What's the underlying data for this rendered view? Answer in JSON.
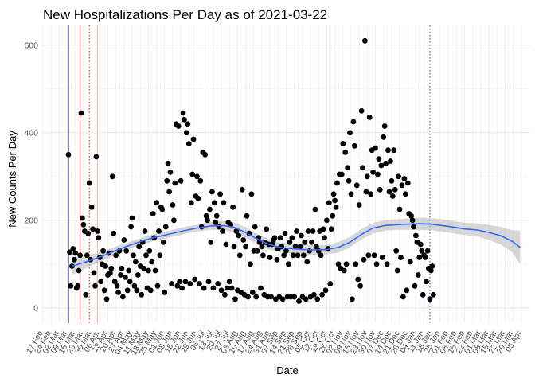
{
  "chart_data": {
    "type": "scatter",
    "title": "New Hospitalizations Per Day as of 2021-03-22",
    "xlabel": "Date",
    "ylabel": "New Counts Per Day",
    "x_range_day_index": [
      0,
      420
    ],
    "ylim": [
      -35,
      645
    ],
    "yticks": [
      0,
      200,
      400,
      600
    ],
    "xtick_labels": [
      "17 Feb",
      "24 Feb",
      "02 Mar",
      "09 Mar",
      "16 Mar",
      "23 Mar",
      "30 Mar",
      "06 Apr",
      "13 Apr",
      "20 Apr",
      "27 Apr",
      "04 May",
      "11 May",
      "18 May",
      "25 May",
      "01 Jun",
      "08 Jun",
      "15 Jun",
      "22 Jun",
      "29 Jun",
      "06 Jul",
      "13 Jul",
      "20 Jul",
      "27 Jul",
      "03 Aug",
      "10 Aug",
      "17 Aug",
      "24 Aug",
      "31 Aug",
      "07 Sep",
      "14 Sep",
      "21 Sep",
      "28 Sep",
      "05 Oct",
      "12 Oct",
      "19 Oct",
      "26 Oct",
      "02 Nov",
      "09 Nov",
      "16 Nov",
      "23 Nov",
      "30 Nov",
      "07 Dec",
      "14 Dec",
      "21 Dec",
      "28 Dec",
      "04 Jan",
      "11 Jan",
      "18 Jan",
      "25 Jan",
      "01 Feb",
      "08 Feb",
      "15 Feb",
      "22 Feb",
      "01 Mar",
      "08 Mar",
      "15 Mar",
      "22 Mar",
      "29 Mar",
      "05 Apr"
    ],
    "x_note": "x values are day index since 2020-02-17",
    "vertical_lines": [
      {
        "day": 22,
        "style": "solid",
        "color": "#1f2a6b"
      },
      {
        "day": 32,
        "style": "solid",
        "color": "#cc2222"
      },
      {
        "day": 40,
        "style": "dotted",
        "color": "#cc2222"
      },
      {
        "day": 47,
        "style": "solid",
        "color": "#f4b6b6"
      },
      {
        "day": 334,
        "style": "dotted",
        "color": "#3344cc"
      }
    ],
    "smooth_line": {
      "color": "#3366ff",
      "x": [
        25,
        35,
        45,
        55,
        65,
        75,
        85,
        95,
        105,
        115,
        125,
        135,
        145,
        155,
        165,
        175,
        185,
        195,
        205,
        215,
        225,
        235,
        245,
        255,
        265,
        275,
        285,
        295,
        305,
        315,
        325,
        335,
        345,
        355,
        365,
        375,
        385,
        395,
        405,
        412
      ],
      "y": [
        95,
        103,
        112,
        122,
        133,
        143,
        152,
        160,
        166,
        172,
        178,
        183,
        187,
        188,
        184,
        172,
        157,
        145,
        138,
        135,
        133,
        132,
        133,
        138,
        150,
        168,
        182,
        188,
        190,
        191,
        192,
        191,
        188,
        184,
        180,
        178,
        172,
        165,
        152,
        138
      ],
      "band_low": [
        75,
        88,
        100,
        112,
        124,
        135,
        144,
        152,
        158,
        164,
        170,
        175,
        178,
        178,
        173,
        160,
        145,
        133,
        127,
        124,
        122,
        121,
        122,
        126,
        138,
        156,
        170,
        176,
        178,
        178,
        178,
        177,
        174,
        170,
        166,
        163,
        155,
        145,
        127,
        100
      ],
      "band_high": [
        115,
        118,
        124,
        132,
        142,
        151,
        160,
        168,
        174,
        180,
        186,
        191,
        196,
        198,
        195,
        184,
        169,
        157,
        149,
        146,
        144,
        143,
        144,
        150,
        162,
        180,
        194,
        200,
        202,
        204,
        206,
        205,
        202,
        198,
        194,
        193,
        189,
        185,
        177,
        176
      ]
    },
    "points": [
      [
        22,
        350
      ],
      [
        23,
        127
      ],
      [
        24,
        50
      ],
      [
        25,
        95
      ],
      [
        26,
        135
      ],
      [
        27,
        110
      ],
      [
        28,
        125
      ],
      [
        29,
        45
      ],
      [
        30,
        50
      ],
      [
        31,
        85
      ],
      [
        32,
        120
      ],
      [
        33,
        445
      ],
      [
        34,
        205
      ],
      [
        35,
        190
      ],
      [
        36,
        175
      ],
      [
        37,
        30
      ],
      [
        38,
        120
      ],
      [
        39,
        170
      ],
      [
        40,
        285
      ],
      [
        41,
        110
      ],
      [
        42,
        230
      ],
      [
        43,
        180
      ],
      [
        44,
        80
      ],
      [
        45,
        50
      ],
      [
        46,
        345
      ],
      [
        47,
        175
      ],
      [
        48,
        160
      ],
      [
        49,
        115
      ],
      [
        50,
        60
      ],
      [
        51,
        100
      ],
      [
        52,
        130
      ],
      [
        53,
        40
      ],
      [
        54,
        95
      ],
      [
        55,
        20
      ],
      [
        56,
        75
      ],
      [
        57,
        125
      ],
      [
        58,
        80
      ],
      [
        59,
        90
      ],
      [
        60,
        300
      ],
      [
        61,
        170
      ],
      [
        62,
        60
      ],
      [
        63,
        120
      ],
      [
        64,
        50
      ],
      [
        65,
        35
      ],
      [
        66,
        130
      ],
      [
        67,
        75
      ],
      [
        68,
        90
      ],
      [
        69,
        25
      ],
      [
        70,
        155
      ],
      [
        71,
        70
      ],
      [
        72,
        130
      ],
      [
        73,
        40
      ],
      [
        74,
        85
      ],
      [
        75,
        60
      ],
      [
        76,
        185
      ],
      [
        77,
        205
      ],
      [
        78,
        120
      ],
      [
        79,
        50
      ],
      [
        80,
        105
      ],
      [
        81,
        40
      ],
      [
        82,
        75
      ],
      [
        83,
        140
      ],
      [
        84,
        95
      ],
      [
        85,
        30
      ],
      [
        86,
        150
      ],
      [
        87,
        90
      ],
      [
        88,
        175
      ],
      [
        89,
        120
      ],
      [
        90,
        45
      ],
      [
        91,
        85
      ],
      [
        92,
        130
      ],
      [
        93,
        40
      ],
      [
        94,
        105
      ],
      [
        95,
        215
      ],
      [
        96,
        160
      ],
      [
        97,
        85
      ],
      [
        98,
        240
      ],
      [
        99,
        50
      ],
      [
        100,
        175
      ],
      [
        101,
        120
      ],
      [
        102,
        230
      ],
      [
        103,
        225
      ],
      [
        104,
        150
      ],
      [
        105,
        35
      ],
      [
        106,
        185
      ],
      [
        107,
        290
      ],
      [
        108,
        330
      ],
      [
        109,
        265
      ],
      [
        110,
        310
      ],
      [
        111,
        55
      ],
      [
        112,
        235
      ],
      [
        113,
        200
      ],
      [
        114,
        285
      ],
      [
        115,
        420
      ],
      [
        116,
        50
      ],
      [
        117,
        415
      ],
      [
        118,
        60
      ],
      [
        119,
        290
      ],
      [
        120,
        45
      ],
      [
        121,
        445
      ],
      [
        122,
        430
      ],
      [
        123,
        60
      ],
      [
        124,
        400
      ],
      [
        125,
        420
      ],
      [
        126,
        375
      ],
      [
        127,
        55
      ],
      [
        128,
        240
      ],
      [
        129,
        305
      ],
      [
        130,
        385
      ],
      [
        131,
        65
      ],
      [
        132,
        255
      ],
      [
        133,
        300
      ],
      [
        134,
        250
      ],
      [
        135,
        55
      ],
      [
        136,
        290
      ],
      [
        137,
        185
      ],
      [
        138,
        355
      ],
      [
        139,
        45
      ],
      [
        140,
        350
      ],
      [
        141,
        210
      ],
      [
        142,
        200
      ],
      [
        143,
        60
      ],
      [
        144,
        225
      ],
      [
        145,
        150
      ],
      [
        146,
        265
      ],
      [
        147,
        45
      ],
      [
        148,
        240
      ],
      [
        149,
        195
      ],
      [
        150,
        210
      ],
      [
        151,
        55
      ],
      [
        152,
        185
      ],
      [
        153,
        260
      ],
      [
        154,
        40
      ],
      [
        155,
        175
      ],
      [
        156,
        240
      ],
      [
        157,
        30
      ],
      [
        158,
        145
      ],
      [
        159,
        45
      ],
      [
        160,
        195
      ],
      [
        161,
        60
      ],
      [
        162,
        190
      ],
      [
        163,
        45
      ],
      [
        164,
        230
      ],
      [
        165,
        140
      ],
      [
        166,
        20
      ],
      [
        167,
        175
      ],
      [
        168,
        40
      ],
      [
        169,
        165
      ],
      [
        170,
        120
      ],
      [
        171,
        35
      ],
      [
        172,
        270
      ],
      [
        173,
        155
      ],
      [
        174,
        30
      ],
      [
        175,
        140
      ],
      [
        176,
        210
      ],
      [
        177,
        25
      ],
      [
        178,
        170
      ],
      [
        179,
        100
      ],
      [
        180,
        260
      ],
      [
        181,
        35
      ],
      [
        182,
        130
      ],
      [
        183,
        185
      ],
      [
        184,
        25
      ],
      [
        185,
        130
      ],
      [
        186,
        160
      ],
      [
        187,
        150
      ],
      [
        188,
        45
      ],
      [
        189,
        140
      ],
      [
        190,
        120
      ],
      [
        191,
        30
      ],
      [
        192,
        150
      ],
      [
        193,
        180
      ],
      [
        194,
        25
      ],
      [
        195,
        145
      ],
      [
        196,
        115
      ],
      [
        197,
        25
      ],
      [
        198,
        145
      ],
      [
        199,
        155
      ],
      [
        200,
        160
      ],
      [
        201,
        20
      ],
      [
        202,
        110
      ],
      [
        203,
        135
      ],
      [
        204,
        25
      ],
      [
        205,
        160
      ],
      [
        206,
        140
      ],
      [
        207,
        20
      ],
      [
        208,
        120
      ],
      [
        209,
        170
      ],
      [
        210,
        130
      ],
      [
        211,
        25
      ],
      [
        212,
        100
      ],
      [
        213,
        150
      ],
      [
        214,
        25
      ],
      [
        215,
        160
      ],
      [
        216,
        120
      ],
      [
        217,
        25
      ],
      [
        218,
        140
      ],
      [
        219,
        175
      ],
      [
        220,
        120
      ],
      [
        221,
        15
      ],
      [
        222,
        140
      ],
      [
        223,
        165
      ],
      [
        224,
        25
      ],
      [
        225,
        120
      ],
      [
        226,
        150
      ],
      [
        227,
        20
      ],
      [
        228,
        105
      ],
      [
        229,
        175
      ],
      [
        230,
        130
      ],
      [
        231,
        25
      ],
      [
        232,
        150
      ],
      [
        233,
        175
      ],
      [
        234,
        30
      ],
      [
        235,
        225
      ],
      [
        236,
        140
      ],
      [
        237,
        20
      ],
      [
        238,
        130
      ],
      [
        239,
        175
      ],
      [
        240,
        120
      ],
      [
        241,
        30
      ],
      [
        242,
        180
      ],
      [
        243,
        160
      ],
      [
        244,
        40
      ],
      [
        245,
        200
      ],
      [
        246,
        135
      ],
      [
        247,
        240
      ],
      [
        248,
        55
      ],
      [
        249,
        180
      ],
      [
        250,
        210
      ],
      [
        251,
        260
      ],
      [
        252,
        245
      ],
      [
        253,
        230
      ],
      [
        254,
        285
      ],
      [
        255,
        100
      ],
      [
        256,
        305
      ],
      [
        257,
        90
      ],
      [
        258,
        305
      ],
      [
        259,
        375
      ],
      [
        260,
        85
      ],
      [
        261,
        355
      ],
      [
        262,
        100
      ],
      [
        263,
        320
      ],
      [
        264,
        290
      ],
      [
        265,
        400
      ],
      [
        266,
        260
      ],
      [
        267,
        20
      ],
      [
        268,
        425
      ],
      [
        269,
        370
      ],
      [
        270,
        100
      ],
      [
        271,
        280
      ],
      [
        272,
        65
      ],
      [
        273,
        235
      ],
      [
        274,
        50
      ],
      [
        275,
        450
      ],
      [
        276,
        320
      ],
      [
        277,
        110
      ],
      [
        278,
        610
      ],
      [
        279,
        265
      ],
      [
        280,
        300
      ],
      [
        281,
        120
      ],
      [
        282,
        435
      ],
      [
        283,
        260
      ],
      [
        284,
        360
      ],
      [
        285,
        310
      ],
      [
        286,
        120
      ],
      [
        287,
        365
      ],
      [
        288,
        100
      ],
      [
        289,
        305
      ],
      [
        290,
        340
      ],
      [
        291,
        270
      ],
      [
        292,
        325
      ],
      [
        293,
        115
      ],
      [
        294,
        390
      ],
      [
        295,
        415
      ],
      [
        296,
        330
      ],
      [
        297,
        100
      ],
      [
        298,
        360
      ],
      [
        299,
        265
      ],
      [
        300,
        335
      ],
      [
        301,
        290
      ],
      [
        302,
        255
      ],
      [
        303,
        360
      ],
      [
        304,
        270
      ],
      [
        305,
        130
      ],
      [
        306,
        85
      ],
      [
        307,
        300
      ],
      [
        308,
        225
      ],
      [
        309,
        115
      ],
      [
        310,
        280
      ],
      [
        311,
        25
      ],
      [
        312,
        295
      ],
      [
        313,
        260
      ],
      [
        314,
        40
      ],
      [
        315,
        285
      ],
      [
        316,
        215
      ],
      [
        317,
        105
      ],
      [
        318,
        210
      ],
      [
        319,
        200
      ],
      [
        320,
        185
      ],
      [
        321,
        50
      ],
      [
        322,
        165
      ],
      [
        323,
        150
      ],
      [
        324,
        75
      ],
      [
        325,
        115
      ],
      [
        326,
        145
      ],
      [
        327,
        130
      ],
      [
        328,
        30
      ],
      [
        329,
        120
      ],
      [
        330,
        115
      ],
      [
        331,
        60
      ],
      [
        332,
        130
      ],
      [
        333,
        90
      ],
      [
        334,
        20
      ],
      [
        335,
        85
      ],
      [
        336,
        95
      ],
      [
        337,
        30
      ]
    ]
  }
}
